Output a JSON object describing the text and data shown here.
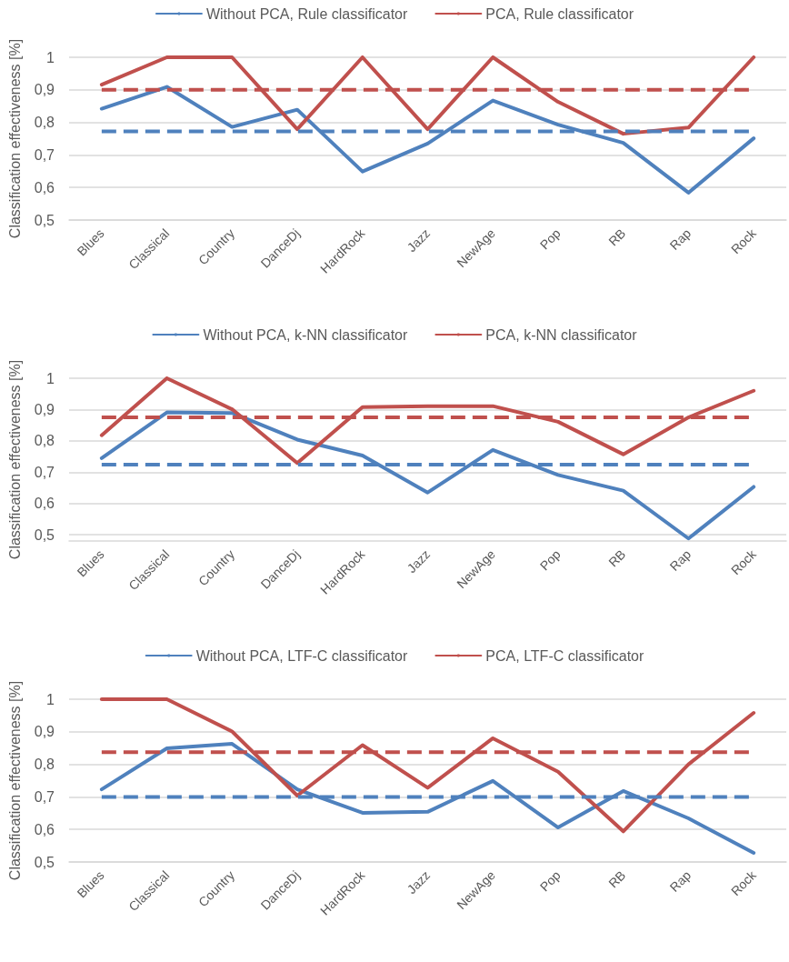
{
  "chart_data": [
    {
      "type": "line",
      "ylabel": "Classification effectiveness [%]",
      "categories": [
        "Blues",
        "Classical",
        "Country",
        "DanceDj",
        "HardRock",
        "Jazz",
        "NewAge",
        "Pop",
        "RB",
        "Rap",
        "Rock"
      ],
      "series": [
        {
          "name": "Without PCA, Rule classificator",
          "color": "#4f81bd",
          "values": [
            0.842,
            0.909,
            0.786,
            0.839,
            0.649,
            0.735,
            0.867,
            0.793,
            0.737,
            0.584,
            0.751
          ]
        },
        {
          "name": "PCA, Rule classificator",
          "color": "#c0504d",
          "values": [
            0.916,
            1,
            1,
            0.779,
            1,
            0.779,
            1,
            0.863,
            0.765,
            0.784,
            1
          ]
        }
      ],
      "ref_lines": [
        {
          "axis": "y",
          "value": 0.9,
          "color": "#c0504d",
          "line_style": "dashed"
        },
        {
          "axis": "y",
          "value": 0.772,
          "color": "#4f81bd",
          "line_style": "dashed"
        }
      ],
      "ylim": [
        0.5,
        1
      ],
      "yticks": [
        {
          "value": 0.5,
          "label": "0,5"
        },
        {
          "value": 0.6,
          "label": "0,6"
        },
        {
          "value": 0.7,
          "label": "0,7"
        },
        {
          "value": 0.8,
          "label": "0,8"
        },
        {
          "value": 0.9,
          "label": "0,9"
        },
        {
          "value": 1,
          "label": "1"
        }
      ],
      "grid": "y",
      "legend": "top",
      "marker": "none",
      "line_style": "solid"
    },
    {
      "type": "line",
      "ylabel": "Classification effectiveness [%]",
      "categories": [
        "Blues",
        "Classical",
        "Country",
        "DanceDj",
        "HardRock",
        "Jazz",
        "NewAge",
        "Pop",
        "RB",
        "Rap",
        "Rock"
      ],
      "series": [
        {
          "name": "Without PCA, k-NN classificator",
          "color": "#4f81bd",
          "values": [
            0.745,
            0.891,
            0.889,
            0.804,
            0.753,
            0.635,
            0.771,
            0.691,
            0.641,
            0.488,
            0.653
          ]
        },
        {
          "name": "PCA, k-NN classificator",
          "color": "#c0504d",
          "values": [
            0.818,
            1,
            0.901,
            0.729,
            0.908,
            0.911,
            0.911,
            0.861,
            0.757,
            0.875,
            0.96
          ]
        }
      ],
      "ref_lines": [
        {
          "axis": "y",
          "value": 0.875,
          "color": "#c0504d",
          "line_style": "dashed"
        },
        {
          "axis": "y",
          "value": 0.724,
          "color": "#4f81bd",
          "line_style": "dashed"
        }
      ],
      "ylim": [
        0.48,
        1
      ],
      "yticks": [
        {
          "value": 0.5,
          "label": "0,5"
        },
        {
          "value": 0.6,
          "label": "0,6"
        },
        {
          "value": 0.7,
          "label": "0,7"
        },
        {
          "value": 0.8,
          "label": "0,8"
        },
        {
          "value": 0.9,
          "label": "0,9"
        },
        {
          "value": 1,
          "label": "1"
        }
      ],
      "grid": "y",
      "legend": "top",
      "marker": "none",
      "line_style": "solid"
    },
    {
      "type": "line",
      "ylabel": "Classification effectiveness [%]",
      "categories": [
        "Blues",
        "Classical",
        "Country",
        "DanceDj",
        "HardRock",
        "Jazz",
        "NewAge",
        "Pop",
        "RB",
        "Rap",
        "Rock"
      ],
      "series": [
        {
          "name": "Without PCA, LTF-C classificator",
          "color": "#4f81bd",
          "values": [
            0.723,
            0.849,
            0.863,
            0.723,
            0.651,
            0.654,
            0.749,
            0.606,
            0.718,
            0.634,
            0.528
          ]
        },
        {
          "name": "PCA, LTF-C classificator",
          "color": "#c0504d",
          "values": [
            1,
            1,
            0.901,
            0.704,
            0.859,
            0.728,
            0.88,
            0.777,
            0.594,
            0.8,
            0.958
          ]
        }
      ],
      "ref_lines": [
        {
          "axis": "y",
          "value": 0.837,
          "color": "#c0504d",
          "line_style": "dashed"
        },
        {
          "axis": "y",
          "value": 0.7,
          "color": "#4f81bd",
          "line_style": "dashed"
        }
      ],
      "ylim": [
        0.5,
        1
      ],
      "yticks": [
        {
          "value": 0.5,
          "label": "0,5"
        },
        {
          "value": 0.6,
          "label": "0,6"
        },
        {
          "value": 0.7,
          "label": "0,7"
        },
        {
          "value": 0.8,
          "label": "0,8"
        },
        {
          "value": 0.9,
          "label": "0,9"
        },
        {
          "value": 1,
          "label": "1"
        }
      ],
      "grid": "y",
      "legend": "top",
      "marker": "none",
      "line_style": "solid"
    }
  ]
}
